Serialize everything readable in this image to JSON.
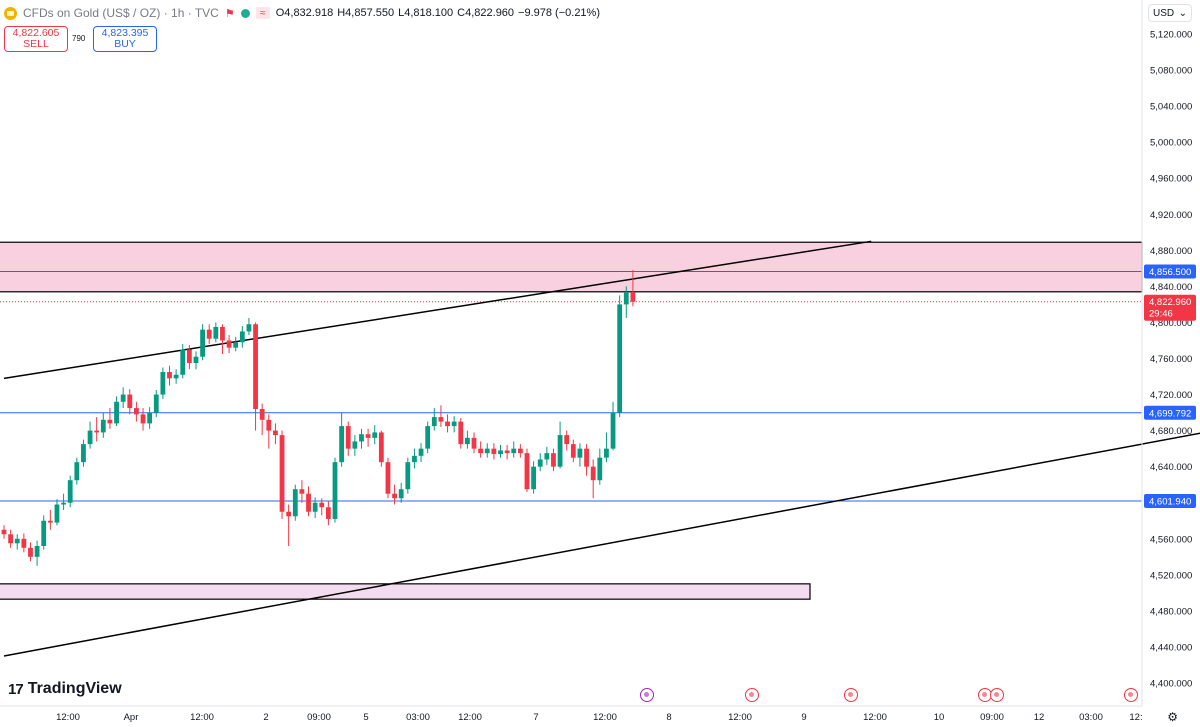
{
  "header": {
    "symbol": "CFDs on Gold (US$ / OZ) · 1h · TVC",
    "open_label": "O",
    "open": "4,832.918",
    "high_label": "H",
    "high": "4,857.550",
    "low_label": "L",
    "low": "4,818.100",
    "close_label": "C",
    "close": "4,822.960",
    "change": "−9.978 (−0.21%)"
  },
  "trade": {
    "sell_price": "4,822.605",
    "sell_label": "SELL",
    "spread": "790",
    "buy_price": "4,823.395",
    "buy_label": "BUY"
  },
  "currency": "USD",
  "brand": "TradingView",
  "icons": {
    "symbol": "gold-coin-icon",
    "market": "market-open-dot-icon",
    "settings": "gear-icon",
    "events": "economic-event-icon"
  },
  "colors": {
    "up": "#089981",
    "down": "#f23645",
    "level": "#2962ff",
    "zone": "#f8d0e0",
    "trend": "#000000"
  },
  "chart_data": {
    "type": "candlestick",
    "timeframe": "1h",
    "ylim": [
      4380,
      5140
    ],
    "y_ticks": [
      "5,120.000",
      "5,080.000",
      "5,040.000",
      "5,000.000",
      "4,960.000",
      "4,920.000",
      "4,880.000",
      "4,840.000",
      "4,800.000",
      "4,760.000",
      "4,720.000",
      "4,680.000",
      "4,640.000",
      "4,600.000",
      "4,560.000",
      "4,520.000",
      "4,480.000",
      "4,440.000",
      "4,400.000"
    ],
    "x_ticks": [
      "12:00",
      "Apr",
      "12:00",
      "2",
      "09:00",
      "5",
      "03:00",
      "12:00",
      "7",
      "12:00",
      "8",
      "12:00",
      "9",
      "12:00",
      "10",
      "09:00",
      "12",
      "03:00",
      "12:"
    ],
    "price_labels": [
      {
        "text": "4,856.500",
        "value": 4856.5,
        "style": "level"
      },
      {
        "text": "4,822.960",
        "value": 4822.96,
        "style": "last",
        "countdown": "29:46"
      },
      {
        "text": "4,699.792",
        "value": 4699.792,
        "style": "level"
      },
      {
        "text": "4,601.940",
        "value": 4601.94,
        "style": "level"
      }
    ],
    "horizontal_levels": [
      4856.5,
      4699.792,
      4601.94
    ],
    "last_price": 4822.96,
    "zones": [
      {
        "top": 4889,
        "bottom": 4834,
        "color": "#f8d0e0"
      },
      {
        "top": 4510,
        "bottom": 4493,
        "color": "#f3dcef"
      }
    ],
    "candle_count": 96,
    "candles": [
      [
        4570,
        4565,
        4575,
        4560
      ],
      [
        4565,
        4555,
        4570,
        4550
      ],
      [
        4555,
        4560,
        4565,
        4548
      ],
      [
        4560,
        4550,
        4566,
        4545
      ],
      [
        4550,
        4540,
        4556,
        4535
      ],
      [
        4540,
        4552,
        4558,
        4530
      ],
      [
        4552,
        4580,
        4586,
        4548
      ],
      [
        4580,
        4578,
        4592,
        4570
      ],
      [
        4578,
        4598,
        4604,
        4575
      ],
      [
        4598,
        4600,
        4610,
        4592
      ],
      [
        4600,
        4625,
        4630,
        4595
      ],
      [
        4625,
        4645,
        4650,
        4620
      ],
      [
        4645,
        4665,
        4670,
        4640
      ],
      [
        4665,
        4680,
        4690,
        4660
      ],
      [
        4680,
        4678,
        4695,
        4668
      ],
      [
        4678,
        4692,
        4700,
        4672
      ],
      [
        4692,
        4688,
        4705,
        4682
      ],
      [
        4688,
        4712,
        4718,
        4685
      ],
      [
        4712,
        4720,
        4728,
        4705
      ],
      [
        4720,
        4705,
        4726,
        4698
      ],
      [
        4705,
        4698,
        4712,
        4690
      ],
      [
        4698,
        4688,
        4705,
        4680
      ],
      [
        4688,
        4700,
        4706,
        4682
      ],
      [
        4700,
        4720,
        4725,
        4695
      ],
      [
        4720,
        4745,
        4750,
        4715
      ],
      [
        4745,
        4738,
        4752,
        4730
      ],
      [
        4738,
        4742,
        4748,
        4732
      ],
      [
        4742,
        4770,
        4776,
        4738
      ],
      [
        4770,
        4755,
        4775,
        4748
      ],
      [
        4755,
        4762,
        4768,
        4748
      ],
      [
        4762,
        4792,
        4798,
        4758
      ],
      [
        4792,
        4782,
        4798,
        4776
      ],
      [
        4782,
        4795,
        4800,
        4778
      ],
      [
        4795,
        4780,
        4798,
        4765
      ],
      [
        4780,
        4772,
        4786,
        4766
      ],
      [
        4772,
        4778,
        4784,
        4768
      ],
      [
        4778,
        4790,
        4796,
        4772
      ],
      [
        4790,
        4798,
        4805,
        4786
      ],
      [
        4798,
        4704,
        4800,
        4680
      ],
      [
        4704,
        4692,
        4710,
        4675
      ],
      [
        4692,
        4680,
        4698,
        4660
      ],
      [
        4680,
        4675,
        4688,
        4665
      ],
      [
        4675,
        4590,
        4680,
        4582
      ],
      [
        4590,
        4585,
        4598,
        4552
      ],
      [
        4585,
        4615,
        4620,
        4580
      ],
      [
        4615,
        4610,
        4625,
        4600
      ],
      [
        4610,
        4590,
        4618,
        4585
      ],
      [
        4590,
        4600,
        4606,
        4583
      ],
      [
        4600,
        4595,
        4605,
        4586
      ],
      [
        4595,
        4582,
        4602,
        4575
      ],
      [
        4582,
        4645,
        4650,
        4578
      ],
      [
        4645,
        4685,
        4700,
        4640
      ],
      [
        4685,
        4660,
        4690,
        4652
      ],
      [
        4660,
        4668,
        4675,
        4652
      ],
      [
        4668,
        4676,
        4682,
        4660
      ],
      [
        4676,
        4672,
        4682,
        4662
      ],
      [
        4672,
        4678,
        4686,
        4665
      ],
      [
        4678,
        4645,
        4680,
        4640
      ],
      [
        4645,
        4610,
        4650,
        4605
      ],
      [
        4610,
        4605,
        4620,
        4598
      ],
      [
        4605,
        4615,
        4622,
        4600
      ],
      [
        4615,
        4645,
        4650,
        4610
      ],
      [
        4645,
        4652,
        4660,
        4638
      ],
      [
        4652,
        4660,
        4666,
        4645
      ],
      [
        4660,
        4685,
        4690,
        4655
      ],
      [
        4685,
        4695,
        4705,
        4680
      ],
      [
        4695,
        4690,
        4708,
        4684
      ],
      [
        4690,
        4685,
        4698,
        4678
      ],
      [
        4685,
        4690,
        4696,
        4678
      ],
      [
        4690,
        4665,
        4694,
        4660
      ],
      [
        4665,
        4672,
        4680,
        4660
      ],
      [
        4672,
        4660,
        4678,
        4655
      ],
      [
        4660,
        4655,
        4668,
        4650
      ],
      [
        4655,
        4660,
        4666,
        4650
      ],
      [
        4660,
        4654,
        4666,
        4648
      ],
      [
        4654,
        4658,
        4664,
        4650
      ],
      [
        4658,
        4655,
        4664,
        4648
      ],
      [
        4655,
        4660,
        4668,
        4650
      ],
      [
        4660,
        4655,
        4665,
        4650
      ],
      [
        4655,
        4615,
        4660,
        4612
      ],
      [
        4615,
        4640,
        4646,
        4610
      ],
      [
        4640,
        4648,
        4655,
        4635
      ],
      [
        4648,
        4655,
        4662,
        4642
      ],
      [
        4655,
        4640,
        4660,
        4635
      ],
      [
        4640,
        4675,
        4690,
        4638
      ],
      [
        4675,
        4665,
        4680,
        4658
      ],
      [
        4665,
        4650,
        4670,
        4645
      ],
      [
        4650,
        4660,
        4666,
        4640
      ],
      [
        4660,
        4640,
        4665,
        4630
      ],
      [
        4640,
        4625,
        4648,
        4605
      ],
      [
        4625,
        4650,
        4660,
        4620
      ],
      [
        4650,
        4660,
        4678,
        4645
      ],
      [
        4660,
        4700,
        4712,
        4658
      ],
      [
        4700,
        4820,
        4830,
        4695
      ],
      [
        4820,
        4833,
        4840,
        4805
      ],
      [
        4833,
        4823,
        4858,
        4818
      ]
    ],
    "trendlines": [
      {
        "from": [
          0,
          4738
        ],
        "to": [
          131,
          4890
        ]
      },
      {
        "from": [
          0,
          4430
        ],
        "to": [
          196,
          4698
        ]
      }
    ]
  }
}
